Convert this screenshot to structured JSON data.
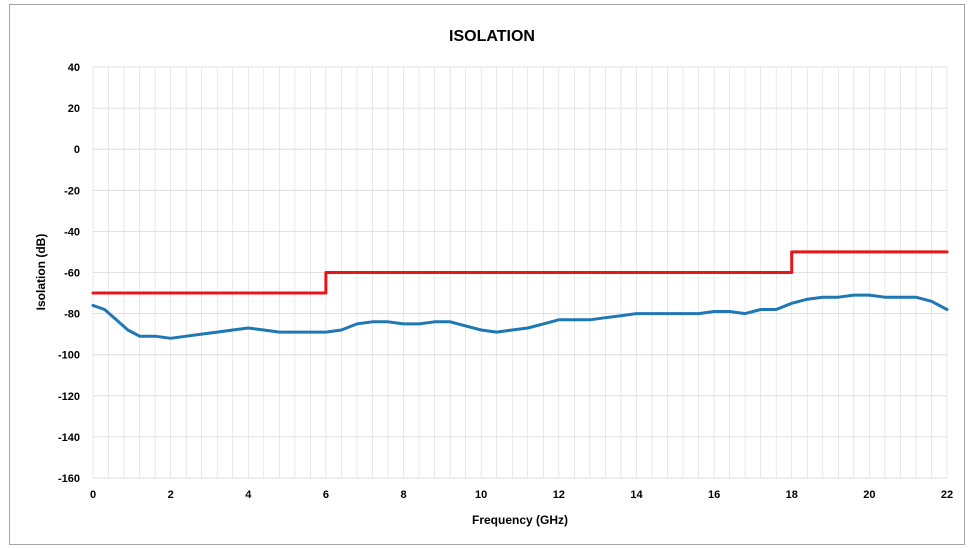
{
  "chart_data": {
    "type": "line",
    "title": "ISOLATION",
    "xlabel": "Frequency (GHz)",
    "ylabel": "Isolation (dB)",
    "xlim": [
      0,
      22
    ],
    "ylim": [
      -160,
      40
    ],
    "x_ticks": [
      "0",
      "2",
      "4",
      "6",
      "8",
      "10",
      "12",
      "14",
      "16",
      "18",
      "20",
      "22"
    ],
    "y_ticks": [
      "40",
      "20",
      "0",
      "-20",
      "-40",
      "-60",
      "-80",
      "-100",
      "-120",
      "-140",
      "-160"
    ],
    "grid": true,
    "legend": "none",
    "colors": {
      "measured": "#1f77b4",
      "limit": "#e8161b",
      "grid": "#d9d9d9",
      "frame": "#a6a6a6"
    },
    "series": [
      {
        "kind": "measured",
        "x": [
          0,
          0.3,
          0.6,
          0.9,
          1.2,
          1.6,
          2.0,
          2.4,
          2.8,
          3.2,
          3.6,
          4.0,
          4.4,
          4.8,
          5.2,
          5.6,
          6.0,
          6.4,
          6.8,
          7.2,
          7.6,
          8.0,
          8.4,
          8.8,
          9.2,
          9.6,
          10.0,
          10.4,
          10.8,
          11.2,
          11.6,
          12.0,
          12.4,
          12.8,
          13.2,
          13.6,
          14.0,
          14.4,
          14.8,
          15.2,
          15.6,
          16.0,
          16.4,
          16.8,
          17.2,
          17.6,
          18.0,
          18.4,
          18.8,
          19.2,
          19.6,
          20.0,
          20.4,
          20.8,
          21.2,
          21.6,
          22.0
        ],
        "y": [
          -76,
          -78,
          -83,
          -88,
          -91,
          -91,
          -92,
          -91,
          -90,
          -89,
          -88,
          -87,
          -88,
          -89,
          -89,
          -89,
          -89,
          -88,
          -85,
          -84,
          -84,
          -85,
          -85,
          -84,
          -84,
          -86,
          -88,
          -89,
          -88,
          -87,
          -85,
          -83,
          -83,
          -83,
          -82,
          -81,
          -80,
          -80,
          -80,
          -80,
          -80,
          -79,
          -79,
          -80,
          -78,
          -78,
          -75,
          -73,
          -72,
          -72,
          -71,
          -71,
          -72,
          -72,
          -72,
          -74,
          -78
        ]
      },
      {
        "kind": "limit",
        "x": [
          0,
          6,
          6,
          18,
          18,
          22
        ],
        "y": [
          -70,
          -70,
          -60,
          -60,
          -50,
          -50
        ]
      }
    ]
  }
}
